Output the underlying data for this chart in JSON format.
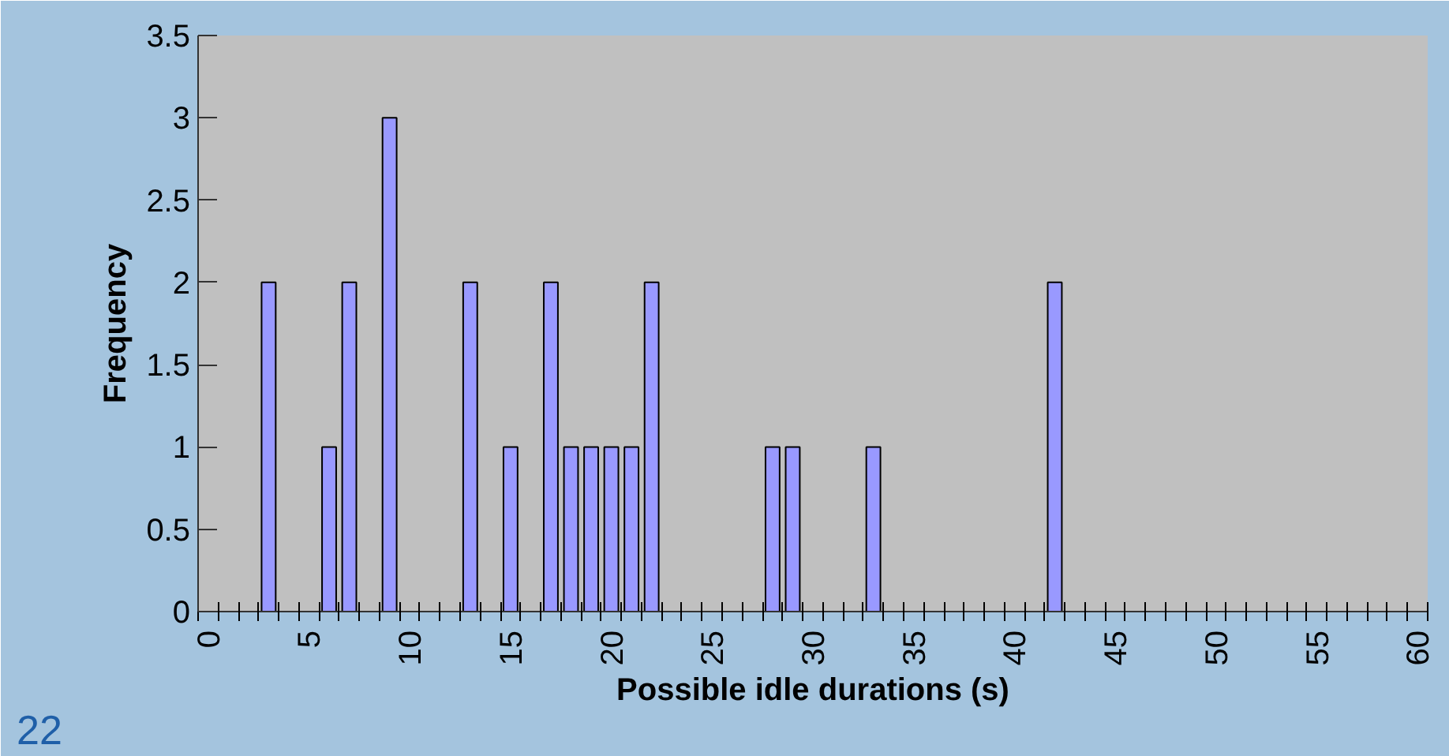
{
  "chart_data": {
    "type": "bar",
    "xlabel": "Possible idle durations (s)",
    "ylabel": "Frequency",
    "categories": [
      "0",
      null,
      null,
      null,
      null,
      "5",
      null,
      null,
      null,
      null,
      "10",
      null,
      null,
      null,
      null,
      "15",
      null,
      null,
      null,
      null,
      "20",
      null,
      null,
      null,
      null,
      "25",
      null,
      null,
      null,
      null,
      "30",
      null,
      null,
      null,
      null,
      "35",
      null,
      null,
      null,
      null,
      "40",
      null,
      null,
      null,
      null,
      "45",
      null,
      null,
      null,
      null,
      "50",
      null,
      null,
      null,
      null,
      "55",
      null,
      null,
      null,
      null,
      "60"
    ],
    "values": [
      null,
      null,
      null,
      2,
      null,
      null,
      1,
      2,
      null,
      3,
      null,
      null,
      null,
      2,
      null,
      1,
      null,
      2,
      1,
      1,
      1,
      1,
      2,
      null,
      null,
      null,
      null,
      null,
      1,
      1,
      null,
      null,
      null,
      1,
      null,
      null,
      null,
      null,
      null,
      null,
      null,
      null,
      2,
      null,
      null,
      null,
      null,
      null,
      null,
      null,
      null,
      null,
      null,
      null,
      null,
      null,
      null,
      null,
      null,
      null,
      null
    ],
    "color": "#9999ff",
    "ylim": [
      0,
      3.5
    ],
    "yticks": [
      0,
      0.5,
      1,
      1.5,
      2,
      2.5,
      3,
      3.5
    ],
    "grid": false,
    "annotations": [
      "22"
    ]
  }
}
